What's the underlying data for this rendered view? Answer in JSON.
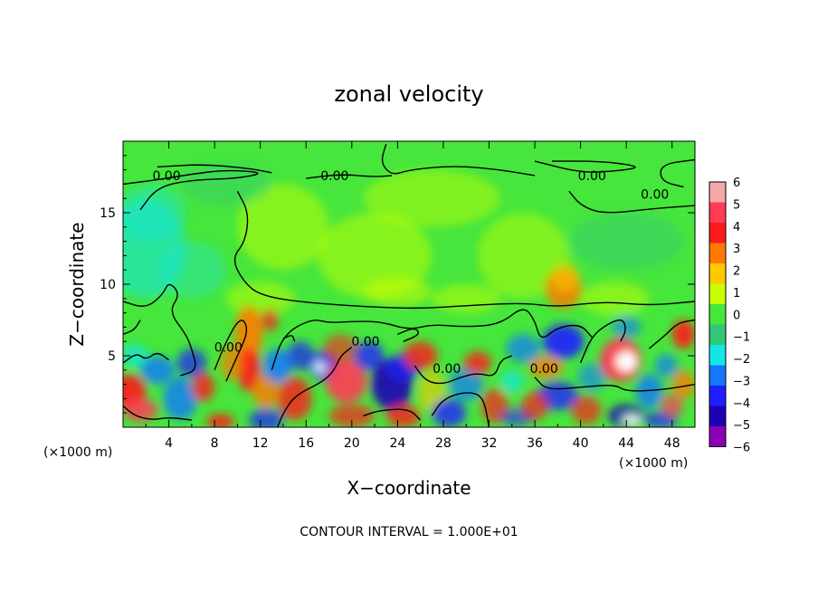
{
  "chart_data": {
    "type": "heatmap",
    "title": "zonal velocity",
    "xlabel": "X−coordinate",
    "ylabel": "Z−coordinate",
    "x_unit": "(×1000 m)",
    "z_unit": "(×1000 m)",
    "xlim": [
      0,
      50
    ],
    "ylim": [
      0,
      20
    ],
    "x_ticks": [
      "4",
      "8",
      "12",
      "16",
      "20",
      "24",
      "28",
      "32",
      "36",
      "40",
      "44",
      "48"
    ],
    "x_tick_values": [
      4,
      8,
      12,
      16,
      20,
      24,
      28,
      32,
      36,
      40,
      44,
      48
    ],
    "y_ticks": [
      "5",
      "10",
      "15"
    ],
    "y_tick_values": [
      5,
      10,
      15
    ],
    "colorbar": {
      "labels": [
        "6",
        "5",
        "4",
        "3",
        "2",
        "1",
        "0",
        "−1",
        "−2",
        "−3",
        "−4",
        "−5",
        "−6"
      ],
      "values": [
        6,
        5,
        4,
        3,
        2,
        1,
        0,
        -1,
        -2,
        -3,
        -4,
        -5,
        -6
      ],
      "colors": [
        "#f4a8a8",
        "#ff3c55",
        "#ff1a1a",
        "#ff7a00",
        "#ffc800",
        "#c8ff00",
        "#46e63c",
        "#32c878",
        "#14e6e6",
        "#1478ff",
        "#1e1eff",
        "#1e00b4",
        "#8c00b4"
      ]
    },
    "contour_labels": [
      {
        "text": "0.00",
        "x": 3.8,
        "z": 17.6
      },
      {
        "text": "0.00",
        "x": 18.5,
        "z": 17.6
      },
      {
        "text": "0.00",
        "x": 41.0,
        "z": 17.6
      },
      {
        "text": "0.00",
        "x": 46.5,
        "z": 16.3
      },
      {
        "text": "0.00",
        "x": 9.2,
        "z": 5.6
      },
      {
        "text": "0.00",
        "x": 21.2,
        "z": 6.0
      },
      {
        "text": "0.00",
        "x": 28.3,
        "z": 4.1
      },
      {
        "text": "0.00",
        "x": 36.8,
        "z": 4.1
      }
    ],
    "contour_interval": "CONTOUR INTERVAL = 1.000E+01"
  }
}
